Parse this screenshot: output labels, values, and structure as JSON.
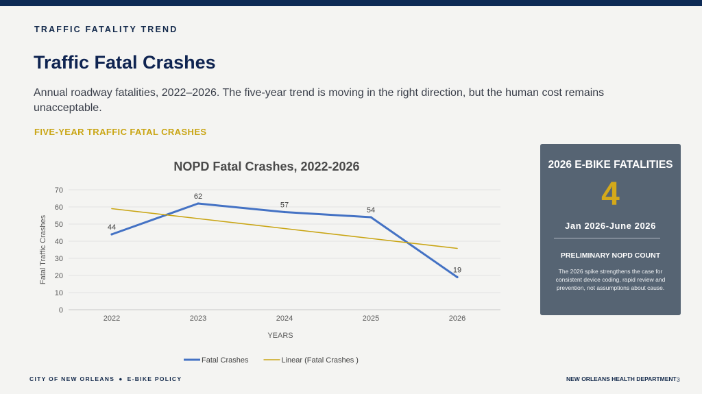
{
  "header": {
    "eyebrow": "TRAFFIC FATALITY TREND",
    "title": "Traffic Fatal Crashes",
    "subtitle": "Annual roadway fatalities, 2022–2026. The five-year trend is moving in the right direction, but the human cost remains unacceptable.",
    "section_label": "FIVE-YEAR TRAFFIC FATAL CRASHES"
  },
  "chart_data": {
    "type": "line",
    "title": "NOPD Fatal Crashes, 2022-2026",
    "xlabel": "YEARS",
    "ylabel": "Fatal Traffic Crashes",
    "categories": [
      "2022",
      "2023",
      "2024",
      "2025",
      "2026"
    ],
    "ylim": [
      0,
      70
    ],
    "yticks": [
      0,
      10,
      20,
      30,
      40,
      50,
      60,
      70
    ],
    "grid": true,
    "legend_position": "bottom",
    "series": [
      {
        "name": "Fatal Crashes",
        "values": [
          44,
          62,
          57,
          54,
          19
        ],
        "data_labels": true,
        "color": "#4472c4"
      },
      {
        "name": "Linear (Fatal Crashes )",
        "values": [
          59,
          53.2,
          47.4,
          41.6,
          35.8
        ],
        "trendline": true,
        "color": "#c9a514"
      }
    ]
  },
  "card": {
    "title": "2026 E-BIKE FATALITIES",
    "number": "4",
    "range": "Jan 2026-June 2026",
    "subheading": "PRELIMINARY NOPD COUNT",
    "body": "The 2026 spike strengthens the case for consistent device coding, rapid review and prevention, not assumptions about cause."
  },
  "footer": {
    "left_a": "CITY OF NEW ORLEANS",
    "separator": "●",
    "left_b": "E-BIKE POLICY",
    "right": "NEW ORLEANS HEALTH DEPARTMENT",
    "page": "3"
  },
  "colors": {
    "navy": "#0d2a55",
    "gold": "#c9a514",
    "card_bg": "#566473",
    "series_blue": "#4472c4"
  }
}
